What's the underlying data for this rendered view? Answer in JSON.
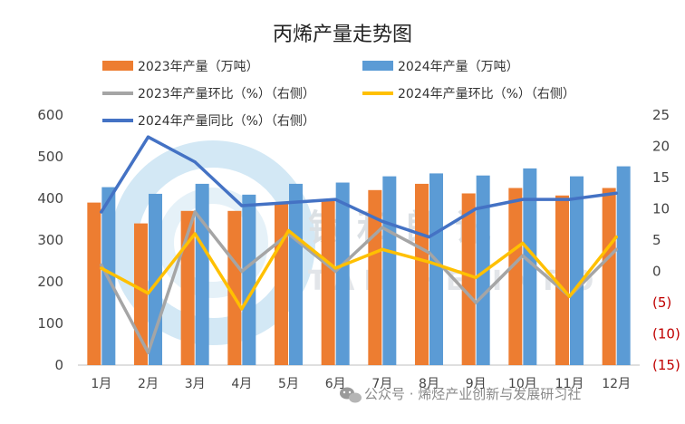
{
  "chart_data": {
    "type": "bar",
    "title": "丙烯产量走势图",
    "categories": [
      "1月",
      "2月",
      "3月",
      "4月",
      "5月",
      "6月",
      "7月",
      "8月",
      "9月",
      "10月",
      "11月",
      "12月"
    ],
    "y_left": {
      "ylim": [
        0,
        600
      ],
      "ticks": [
        "0",
        "100",
        "200",
        "300",
        "400",
        "500",
        "600"
      ]
    },
    "y_right": {
      "ylim": [
        -15,
        25
      ],
      "ticks": [
        "(15)",
        "(10)",
        "(5)",
        "0",
        "5",
        "10",
        "15",
        "20",
        "25"
      ]
    },
    "series": [
      {
        "name": "2023年产量（万吨）",
        "kind": "bar",
        "axis": "left",
        "color": "#ED7D31",
        "values": [
          390,
          340,
          370,
          370,
          390,
          395,
          420,
          435,
          412,
          425,
          407,
          425
        ]
      },
      {
        "name": "2024年产量（万吨）",
        "kind": "bar",
        "axis": "left",
        "color": "#5B9BD5",
        "values": [
          427,
          411,
          435,
          409,
          435,
          438,
          453,
          460,
          455,
          472,
          453,
          477
        ]
      },
      {
        "name": "2023年产量环比（%）（右侧）",
        "kind": "line",
        "axis": "right",
        "color": "#A5A5A5",
        "values": [
          1,
          -13,
          9.5,
          0,
          6,
          0,
          7,
          3,
          -5,
          2.5,
          -4,
          3.5
        ]
      },
      {
        "name": "2024年产量环比（%）（右侧）",
        "kind": "line",
        "axis": "right",
        "color": "#FFC000",
        "values": [
          0.5,
          -3.5,
          6,
          -6,
          6.5,
          0.5,
          3.5,
          1.5,
          -1,
          4.5,
          -4,
          5.5
        ]
      },
      {
        "name": "2024年产量同比（%）（右侧）",
        "kind": "line",
        "axis": "right",
        "color": "#4472C4",
        "values": [
          9.5,
          21.5,
          17.5,
          10.5,
          11,
          11.5,
          8,
          5.5,
          10,
          11.5,
          11.5,
          12.5
        ]
      }
    ],
    "legend": "top"
  },
  "watermark": {
    "text": "钛 和 朗 讯",
    "sub": "TAN  HE  INFO"
  },
  "footer": {
    "icon": "wechat-icon",
    "text": "公众号 · 烯烃产业创新与发展研习社"
  }
}
